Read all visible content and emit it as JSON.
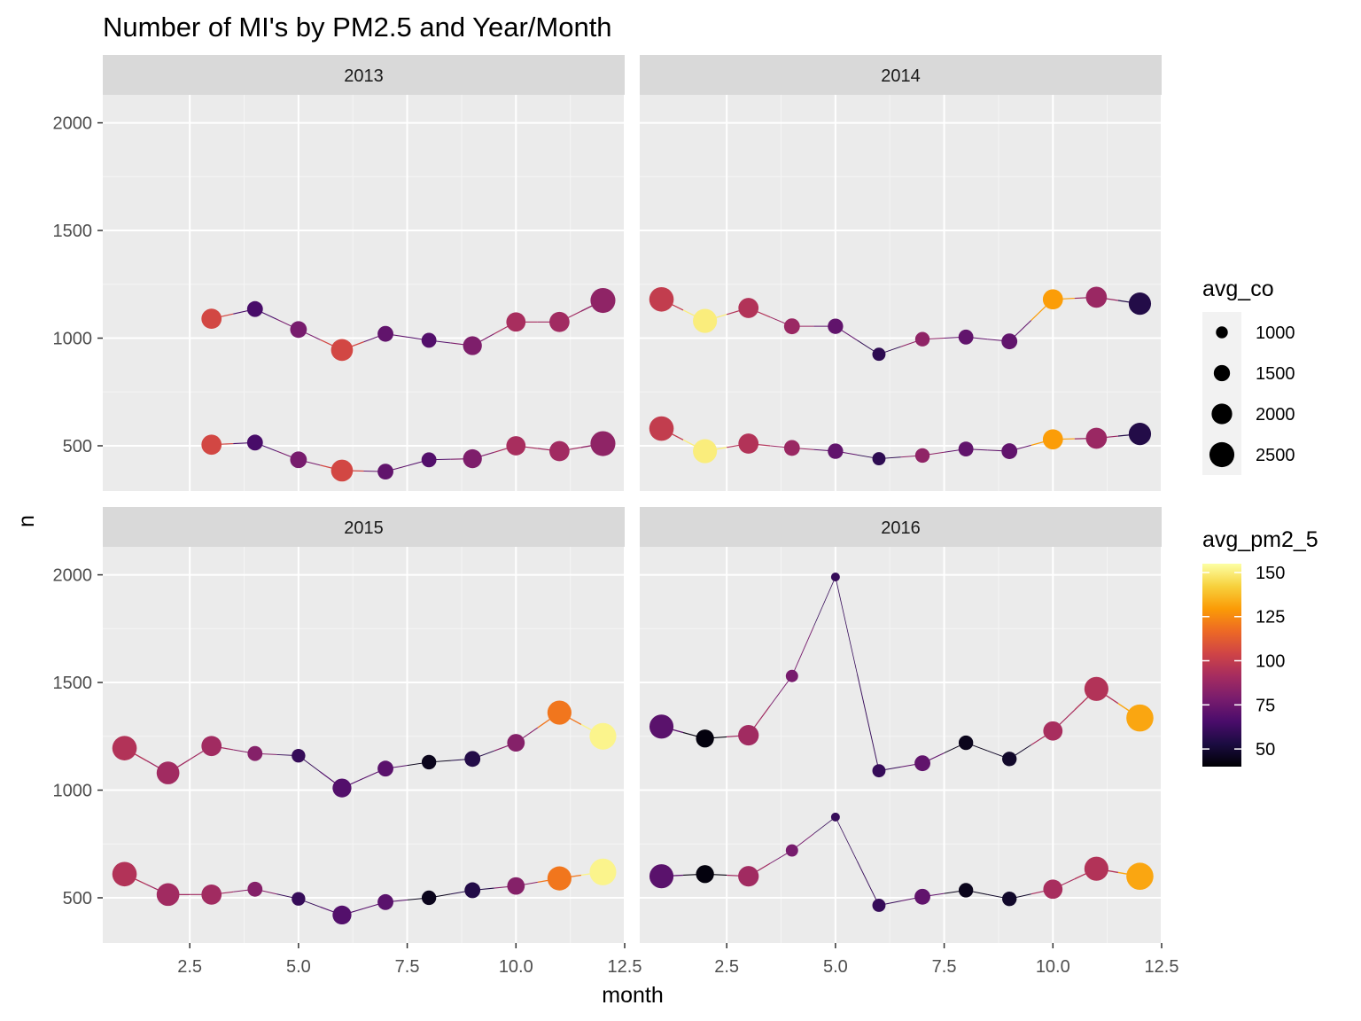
{
  "chart_data": {
    "type": "scatter",
    "title": "Number of MI's by PM2.5 and Year/Month",
    "xlabel": "month",
    "ylabel": "n",
    "xlim": [
      0.5,
      12.5
    ],
    "ylim": [
      290,
      2130
    ],
    "x_ticks": [
      "2.5",
      "5.0",
      "7.5",
      "10.0",
      "12.5"
    ],
    "y_ticks": [
      "500",
      "1000",
      "1500",
      "2000"
    ],
    "grid": true,
    "facets": [
      {
        "label": "2013",
        "series": [
          {
            "points": [
              {
                "x": 3,
                "y": 1090,
                "pm": 105,
                "co": 1950
              },
              {
                "x": 4,
                "y": 1135,
                "pm": 65,
                "co": 1450
              },
              {
                "x": 5,
                "y": 1040,
                "pm": 78,
                "co": 1550
              },
              {
                "x": 6,
                "y": 945,
                "pm": 105,
                "co": 2150
              },
              {
                "x": 7,
                "y": 1020,
                "pm": 72,
                "co": 1450
              },
              {
                "x": 8,
                "y": 990,
                "pm": 68,
                "co": 1350
              },
              {
                "x": 9,
                "y": 965,
                "pm": 80,
                "co": 1800
              },
              {
                "x": 10,
                "y": 1075,
                "pm": 92,
                "co": 1850
              },
              {
                "x": 11,
                "y": 1075,
                "pm": 90,
                "co": 1950
              },
              {
                "x": 12,
                "y": 1175,
                "pm": 85,
                "co": 2500
              }
            ]
          },
          {
            "points": [
              {
                "x": 3,
                "y": 505,
                "pm": 105,
                "co": 1950
              },
              {
                "x": 4,
                "y": 515,
                "pm": 65,
                "co": 1450
              },
              {
                "x": 5,
                "y": 435,
                "pm": 78,
                "co": 1550
              },
              {
                "x": 6,
                "y": 385,
                "pm": 105,
                "co": 2150
              },
              {
                "x": 7,
                "y": 380,
                "pm": 72,
                "co": 1450
              },
              {
                "x": 8,
                "y": 435,
                "pm": 68,
                "co": 1350
              },
              {
                "x": 9,
                "y": 440,
                "pm": 80,
                "co": 1800
              },
              {
                "x": 10,
                "y": 500,
                "pm": 92,
                "co": 1850
              },
              {
                "x": 11,
                "y": 475,
                "pm": 90,
                "co": 1950
              },
              {
                "x": 12,
                "y": 510,
                "pm": 85,
                "co": 2500
              }
            ]
          }
        ]
      },
      {
        "label": "2014",
        "series": [
          {
            "points": [
              {
                "x": 1,
                "y": 1180,
                "pm": 100,
                "co": 2450
              },
              {
                "x": 2,
                "y": 1080,
                "pm": 150,
                "co": 2400
              },
              {
                "x": 3,
                "y": 1140,
                "pm": 95,
                "co": 1950
              },
              {
                "x": 4,
                "y": 1055,
                "pm": 88,
                "co": 1450
              },
              {
                "x": 5,
                "y": 1055,
                "pm": 72,
                "co": 1400
              },
              {
                "x": 6,
                "y": 925,
                "pm": 58,
                "co": 1150
              },
              {
                "x": 7,
                "y": 995,
                "pm": 85,
                "co": 1300
              },
              {
                "x": 8,
                "y": 1005,
                "pm": 72,
                "co": 1350
              },
              {
                "x": 9,
                "y": 985,
                "pm": 72,
                "co": 1450
              },
              {
                "x": 10,
                "y": 1180,
                "pm": 130,
                "co": 1950
              },
              {
                "x": 11,
                "y": 1190,
                "pm": 88,
                "co": 2050
              },
              {
                "x": 12,
                "y": 1160,
                "pm": 55,
                "co": 2200
              }
            ]
          },
          {
            "points": [
              {
                "x": 1,
                "y": 580,
                "pm": 100,
                "co": 2450
              },
              {
                "x": 2,
                "y": 475,
                "pm": 150,
                "co": 2400
              },
              {
                "x": 3,
                "y": 510,
                "pm": 95,
                "co": 1950
              },
              {
                "x": 4,
                "y": 490,
                "pm": 88,
                "co": 1450
              },
              {
                "x": 5,
                "y": 475,
                "pm": 72,
                "co": 1400
              },
              {
                "x": 6,
                "y": 440,
                "pm": 58,
                "co": 1150
              },
              {
                "x": 7,
                "y": 455,
                "pm": 85,
                "co": 1300
              },
              {
                "x": 8,
                "y": 485,
                "pm": 72,
                "co": 1350
              },
              {
                "x": 9,
                "y": 475,
                "pm": 72,
                "co": 1450
              },
              {
                "x": 10,
                "y": 530,
                "pm": 130,
                "co": 1950
              },
              {
                "x": 11,
                "y": 535,
                "pm": 88,
                "co": 2050
              },
              {
                "x": 12,
                "y": 555,
                "pm": 55,
                "co": 2200
              }
            ]
          }
        ]
      },
      {
        "label": "2015",
        "series": [
          {
            "points": [
              {
                "x": 1,
                "y": 1195,
                "pm": 95,
                "co": 2450
              },
              {
                "x": 2,
                "y": 1080,
                "pm": 90,
                "co": 2250
              },
              {
                "x": 3,
                "y": 1205,
                "pm": 90,
                "co": 1950
              },
              {
                "x": 4,
                "y": 1170,
                "pm": 82,
                "co": 1350
              },
              {
                "x": 5,
                "y": 1160,
                "pm": 60,
                "co": 1200
              },
              {
                "x": 6,
                "y": 1010,
                "pm": 68,
                "co": 1800
              },
              {
                "x": 7,
                "y": 1100,
                "pm": 70,
                "co": 1450
              },
              {
                "x": 8,
                "y": 1130,
                "pm": 45,
                "co": 1300
              },
              {
                "x": 9,
                "y": 1145,
                "pm": 55,
                "co": 1450
              },
              {
                "x": 10,
                "y": 1220,
                "pm": 82,
                "co": 1650
              },
              {
                "x": 11,
                "y": 1360,
                "pm": 120,
                "co": 2400
              },
              {
                "x": 12,
                "y": 1250,
                "pm": 152,
                "co": 2700
              }
            ]
          },
          {
            "points": [
              {
                "x": 1,
                "y": 610,
                "pm": 95,
                "co": 2450
              },
              {
                "x": 2,
                "y": 515,
                "pm": 90,
                "co": 2250
              },
              {
                "x": 3,
                "y": 515,
                "pm": 90,
                "co": 1950
              },
              {
                "x": 4,
                "y": 540,
                "pm": 82,
                "co": 1350
              },
              {
                "x": 5,
                "y": 495,
                "pm": 60,
                "co": 1200
              },
              {
                "x": 6,
                "y": 420,
                "pm": 68,
                "co": 1800
              },
              {
                "x": 7,
                "y": 480,
                "pm": 70,
                "co": 1450
              },
              {
                "x": 8,
                "y": 500,
                "pm": 45,
                "co": 1300
              },
              {
                "x": 9,
                "y": 535,
                "pm": 55,
                "co": 1450
              },
              {
                "x": 10,
                "y": 555,
                "pm": 82,
                "co": 1650
              },
              {
                "x": 11,
                "y": 590,
                "pm": 120,
                "co": 2400
              },
              {
                "x": 12,
                "y": 620,
                "pm": 152,
                "co": 2700
              }
            ]
          }
        ]
      },
      {
        "label": "2016",
        "series": [
          {
            "points": [
              {
                "x": 1,
                "y": 1295,
                "pm": 70,
                "co": 2400
              },
              {
                "x": 2,
                "y": 1240,
                "pm": 42,
                "co": 1700
              },
              {
                "x": 3,
                "y": 1255,
                "pm": 90,
                "co": 2000
              },
              {
                "x": 4,
                "y": 1530,
                "pm": 78,
                "co": 1050
              },
              {
                "x": 5,
                "y": 1990,
                "pm": 60,
                "co": 650
              },
              {
                "x": 6,
                "y": 1090,
                "pm": 60,
                "co": 1150
              },
              {
                "x": 7,
                "y": 1125,
                "pm": 72,
                "co": 1450
              },
              {
                "x": 8,
                "y": 1220,
                "pm": 45,
                "co": 1300
              },
              {
                "x": 9,
                "y": 1145,
                "pm": 48,
                "co": 1300
              },
              {
                "x": 10,
                "y": 1275,
                "pm": 92,
                "co": 1850
              },
              {
                "x": 11,
                "y": 1470,
                "pm": 95,
                "co": 2400
              },
              {
                "x": 12,
                "y": 1335,
                "pm": 132,
                "co": 2750
              }
            ]
          },
          {
            "points": [
              {
                "x": 1,
                "y": 600,
                "pm": 70,
                "co": 2400
              },
              {
                "x": 2,
                "y": 610,
                "pm": 42,
                "co": 1700
              },
              {
                "x": 3,
                "y": 600,
                "pm": 90,
                "co": 2000
              },
              {
                "x": 4,
                "y": 720,
                "pm": 78,
                "co": 1050
              },
              {
                "x": 5,
                "y": 875,
                "pm": 60,
                "co": 650
              },
              {
                "x": 6,
                "y": 465,
                "pm": 60,
                "co": 1150
              },
              {
                "x": 7,
                "y": 505,
                "pm": 72,
                "co": 1450
              },
              {
                "x": 8,
                "y": 535,
                "pm": 45,
                "co": 1300
              },
              {
                "x": 9,
                "y": 495,
                "pm": 48,
                "co": 1300
              },
              {
                "x": 10,
                "y": 540,
                "pm": 92,
                "co": 1850
              },
              {
                "x": 11,
                "y": 635,
                "pm": 95,
                "co": 2400
              },
              {
                "x": 12,
                "y": 600,
                "pm": 132,
                "co": 2750
              }
            ]
          }
        ]
      }
    ],
    "legend_size": {
      "title": "avg_co",
      "placement": "right",
      "values": [
        1000,
        1500,
        2000,
        2500
      ],
      "labels": [
        "1000",
        "1500",
        "2000",
        "2500"
      ]
    },
    "legend_color": {
      "title": "avg_pm2_5",
      "placement": "right",
      "range": [
        40,
        155
      ],
      "breaks": [
        50,
        75,
        100,
        125,
        150
      ],
      "labels": [
        "50",
        "75",
        "100",
        "125",
        "150"
      ],
      "palette": [
        "#000004",
        "#1b0c41",
        "#4a0c6b",
        "#781c6d",
        "#a52c60",
        "#cf4446",
        "#ed6925",
        "#fb9b06",
        "#f7d13d",
        "#fcffa4"
      ]
    }
  }
}
